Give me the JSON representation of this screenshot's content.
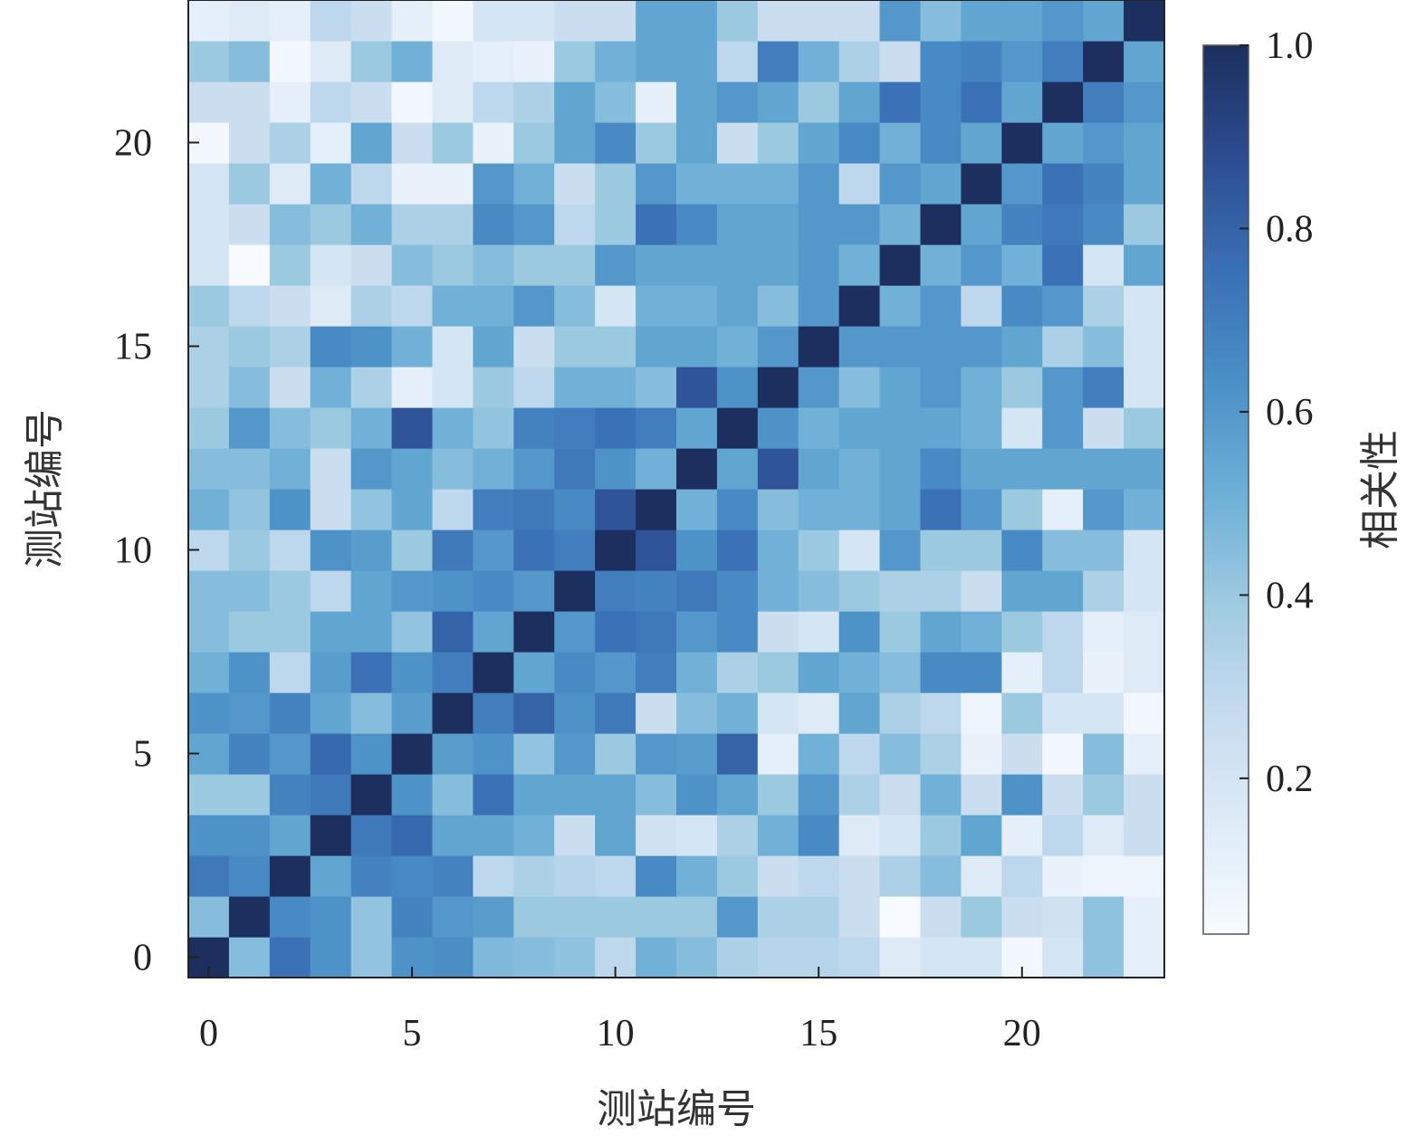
{
  "chart_data": {
    "type": "heatmap",
    "xlabel": "测站编号",
    "ylabel": "测站编号",
    "colorbar_label": "相关性",
    "x_ticks": [
      "0",
      "5",
      "10",
      "15",
      "20"
    ],
    "y_ticks": [
      "0",
      "5",
      "10",
      "15",
      "20"
    ],
    "colorbar_ticks": [
      "0.2",
      "0.4",
      "0.6",
      "0.8",
      "1.0"
    ],
    "colorbar_range": [
      0.03,
      1.0
    ],
    "n": 24,
    "origin": "lower",
    "colormap": [
      "#f7fbff",
      "#deebf7",
      "#c6dbef",
      "#9ecae1",
      "#6baed6",
      "#4a8fc6",
      "#3a6fb5",
      "#2c4c90",
      "#1c2f5e"
    ],
    "matrix": [
      [
        1.0,
        0.45,
        0.75,
        0.62,
        0.42,
        0.62,
        0.64,
        0.47,
        0.45,
        0.43,
        0.3,
        0.5,
        0.45,
        0.35,
        0.32,
        0.32,
        0.3,
        0.15,
        0.2,
        0.2,
        0.05,
        0.2,
        0.43,
        0.12
      ],
      [
        0.45,
        1.0,
        0.65,
        0.62,
        0.42,
        0.68,
        0.6,
        0.58,
        0.4,
        0.4,
        0.4,
        0.4,
        0.4,
        0.6,
        0.35,
        0.35,
        0.25,
        0.03,
        0.25,
        0.4,
        0.25,
        0.22,
        0.43,
        0.12
      ],
      [
        0.72,
        0.65,
        1.0,
        0.55,
        0.68,
        0.65,
        0.68,
        0.3,
        0.35,
        0.32,
        0.3,
        0.65,
        0.5,
        0.4,
        0.25,
        0.3,
        0.25,
        0.35,
        0.45,
        0.15,
        0.3,
        0.1,
        0.08,
        0.08
      ],
      [
        0.62,
        0.62,
        0.55,
        1.0,
        0.72,
        0.78,
        0.55,
        0.55,
        0.5,
        0.25,
        0.55,
        0.22,
        0.2,
        0.35,
        0.5,
        0.65,
        0.15,
        0.2,
        0.4,
        0.55,
        0.12,
        0.3,
        0.15,
        0.25
      ],
      [
        0.4,
        0.4,
        0.68,
        0.72,
        1.0,
        0.62,
        0.45,
        0.75,
        0.55,
        0.55,
        0.55,
        0.45,
        0.62,
        0.55,
        0.4,
        0.6,
        0.35,
        0.25,
        0.5,
        0.25,
        0.62,
        0.25,
        0.4,
        0.25
      ],
      [
        0.55,
        0.68,
        0.6,
        0.78,
        0.62,
        1.0,
        0.58,
        0.62,
        0.42,
        0.6,
        0.4,
        0.6,
        0.58,
        0.8,
        0.12,
        0.5,
        0.3,
        0.45,
        0.35,
        0.1,
        0.25,
        0.05,
        0.45,
        0.12
      ],
      [
        0.62,
        0.6,
        0.68,
        0.55,
        0.45,
        0.58,
        1.0,
        0.7,
        0.8,
        0.62,
        0.72,
        0.25,
        0.45,
        0.5,
        0.2,
        0.15,
        0.55,
        0.35,
        0.3,
        0.08,
        0.4,
        0.2,
        0.2,
        0.05
      ],
      [
        0.5,
        0.62,
        0.3,
        0.58,
        0.75,
        0.62,
        0.7,
        1.0,
        0.55,
        0.65,
        0.6,
        0.7,
        0.5,
        0.35,
        0.4,
        0.55,
        0.5,
        0.45,
        0.65,
        0.65,
        0.12,
        0.3,
        0.1,
        0.15
      ],
      [
        0.45,
        0.4,
        0.4,
        0.55,
        0.55,
        0.42,
        0.8,
        0.55,
        1.0,
        0.6,
        0.75,
        0.72,
        0.6,
        0.65,
        0.25,
        0.2,
        0.62,
        0.4,
        0.55,
        0.5,
        0.4,
        0.3,
        0.12,
        0.15
      ],
      [
        0.45,
        0.45,
        0.4,
        0.3,
        0.55,
        0.6,
        0.62,
        0.65,
        0.6,
        1.0,
        0.7,
        0.68,
        0.72,
        0.65,
        0.5,
        0.45,
        0.4,
        0.35,
        0.35,
        0.25,
        0.55,
        0.55,
        0.35,
        0.2
      ],
      [
        0.3,
        0.4,
        0.3,
        0.62,
        0.58,
        0.4,
        0.72,
        0.6,
        0.75,
        0.7,
        1.0,
        0.85,
        0.62,
        0.75,
        0.5,
        0.4,
        0.2,
        0.6,
        0.4,
        0.4,
        0.65,
        0.45,
        0.45,
        0.2
      ],
      [
        0.5,
        0.42,
        0.62,
        0.25,
        0.42,
        0.55,
        0.3,
        0.7,
        0.72,
        0.65,
        0.85,
        1.0,
        0.5,
        0.65,
        0.45,
        0.5,
        0.5,
        0.55,
        0.75,
        0.6,
        0.4,
        0.12,
        0.6,
        0.5
      ],
      [
        0.45,
        0.45,
        0.5,
        0.25,
        0.6,
        0.55,
        0.45,
        0.5,
        0.6,
        0.72,
        0.62,
        0.5,
        1.0,
        0.55,
        0.85,
        0.55,
        0.5,
        0.55,
        0.65,
        0.55,
        0.55,
        0.55,
        0.55,
        0.55
      ],
      [
        0.4,
        0.6,
        0.45,
        0.4,
        0.5,
        0.85,
        0.5,
        0.42,
        0.68,
        0.7,
        0.75,
        0.7,
        0.55,
        1.0,
        0.62,
        0.5,
        0.55,
        0.55,
        0.55,
        0.5,
        0.2,
        0.6,
        0.25,
        0.4
      ],
      [
        0.35,
        0.45,
        0.25,
        0.5,
        0.35,
        0.12,
        0.2,
        0.4,
        0.3,
        0.5,
        0.5,
        0.45,
        0.85,
        0.62,
        1.0,
        0.6,
        0.45,
        0.55,
        0.6,
        0.5,
        0.4,
        0.6,
        0.7,
        0.2
      ],
      [
        0.35,
        0.4,
        0.35,
        0.65,
        0.62,
        0.5,
        0.2,
        0.55,
        0.25,
        0.4,
        0.4,
        0.55,
        0.55,
        0.5,
        0.6,
        1.0,
        0.6,
        0.6,
        0.6,
        0.6,
        0.55,
        0.35,
        0.45,
        0.2
      ],
      [
        0.4,
        0.3,
        0.25,
        0.15,
        0.35,
        0.3,
        0.5,
        0.5,
        0.6,
        0.45,
        0.2,
        0.5,
        0.5,
        0.55,
        0.45,
        0.6,
        1.0,
        0.5,
        0.6,
        0.3,
        0.65,
        0.6,
        0.35,
        0.2
      ],
      [
        0.2,
        0.03,
        0.4,
        0.2,
        0.25,
        0.45,
        0.4,
        0.45,
        0.4,
        0.4,
        0.6,
        0.55,
        0.55,
        0.55,
        0.55,
        0.6,
        0.5,
        1.0,
        0.5,
        0.6,
        0.5,
        0.75,
        0.2,
        0.55
      ],
      [
        0.2,
        0.25,
        0.45,
        0.4,
        0.5,
        0.35,
        0.35,
        0.65,
        0.6,
        0.3,
        0.4,
        0.75,
        0.65,
        0.55,
        0.55,
        0.6,
        0.6,
        0.5,
        1.0,
        0.55,
        0.68,
        0.72,
        0.65,
        0.4
      ],
      [
        0.2,
        0.4,
        0.15,
        0.5,
        0.3,
        0.1,
        0.1,
        0.6,
        0.5,
        0.25,
        0.4,
        0.6,
        0.5,
        0.5,
        0.5,
        0.6,
        0.3,
        0.6,
        0.55,
        1.0,
        0.6,
        0.75,
        0.68,
        0.55
      ],
      [
        0.05,
        0.25,
        0.35,
        0.12,
        0.55,
        0.25,
        0.4,
        0.1,
        0.4,
        0.55,
        0.65,
        0.4,
        0.55,
        0.25,
        0.4,
        0.55,
        0.65,
        0.5,
        0.65,
        0.55,
        1.0,
        0.55,
        0.6,
        0.55
      ],
      [
        0.25,
        0.25,
        0.12,
        0.3,
        0.25,
        0.05,
        0.15,
        0.3,
        0.35,
        0.55,
        0.45,
        0.12,
        0.55,
        0.6,
        0.55,
        0.4,
        0.55,
        0.75,
        0.65,
        0.75,
        0.55,
        1.0,
        0.7,
        0.6
      ],
      [
        0.4,
        0.45,
        0.05,
        0.15,
        0.4,
        0.5,
        0.15,
        0.12,
        0.1,
        0.4,
        0.5,
        0.55,
        0.55,
        0.3,
        0.7,
        0.5,
        0.35,
        0.25,
        0.65,
        0.68,
        0.6,
        0.7,
        1.0,
        0.55
      ],
      [
        0.12,
        0.15,
        0.12,
        0.3,
        0.25,
        0.12,
        0.05,
        0.2,
        0.2,
        0.25,
        0.25,
        0.55,
        0.55,
        0.4,
        0.25,
        0.25,
        0.25,
        0.6,
        0.45,
        0.55,
        0.55,
        0.6,
        0.55,
        1.0
      ]
    ]
  }
}
